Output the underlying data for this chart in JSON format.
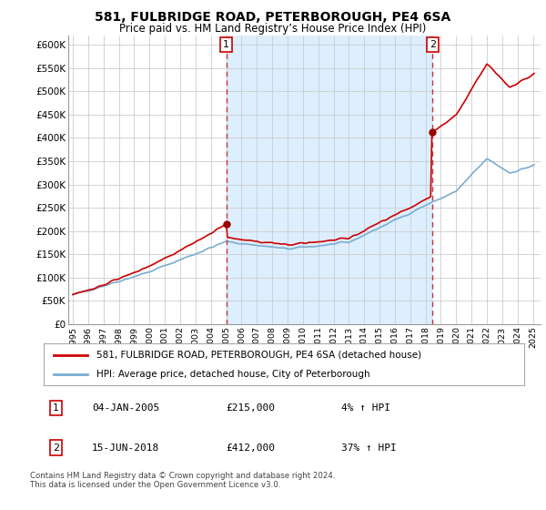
{
  "title": "581, FULBRIDGE ROAD, PETERBOROUGH, PE4 6SA",
  "subtitle": "Price paid vs. HM Land Registry’s House Price Index (HPI)",
  "title_fontsize": 10,
  "subtitle_fontsize": 8.5,
  "ylim": [
    0,
    620000
  ],
  "yticks": [
    0,
    50000,
    100000,
    150000,
    200000,
    250000,
    300000,
    350000,
    400000,
    450000,
    500000,
    550000,
    600000
  ],
  "ytick_labels": [
    "£0",
    "£50K",
    "£100K",
    "£150K",
    "£200K",
    "£250K",
    "£300K",
    "£350K",
    "£400K",
    "£450K",
    "£500K",
    "£550K",
    "£600K"
  ],
  "xlim_start": 1994.7,
  "xlim_end": 2025.5,
  "xticks": [
    1995,
    1996,
    1997,
    1998,
    1999,
    2000,
    2001,
    2002,
    2003,
    2004,
    2005,
    2006,
    2007,
    2008,
    2009,
    2010,
    2011,
    2012,
    2013,
    2014,
    2015,
    2016,
    2017,
    2018,
    2019,
    2020,
    2021,
    2022,
    2023,
    2024,
    2025
  ],
  "sale1_x": 2005.01,
  "sale1_y": 215000,
  "sale2_x": 2018.45,
  "sale2_y": 412000,
  "red_line_color": "#cc0000",
  "blue_line_color": "#7aadcf",
  "fill_color": "#ddeeff",
  "marker_color": "#990000",
  "dashed_line_color": "#cc3333",
  "grid_color": "#cccccc",
  "background_color": "#ffffff",
  "plot_bg_color": "#ffffff",
  "legend_line1": "581, FULBRIDGE ROAD, PETERBOROUGH, PE4 6SA (detached house)",
  "legend_line2": "HPI: Average price, detached house, City of Peterborough",
  "annotation1_num": "1",
  "annotation1_date": "04-JAN-2005",
  "annotation1_price": "£215,000",
  "annotation1_hpi": "4% ↑ HPI",
  "annotation2_num": "2",
  "annotation2_date": "15-JUN-2018",
  "annotation2_price": "£412,000",
  "annotation2_hpi": "37% ↑ HPI",
  "footer": "Contains HM Land Registry data © Crown copyright and database right 2024.\nThis data is licensed under the Open Government Licence v3.0."
}
